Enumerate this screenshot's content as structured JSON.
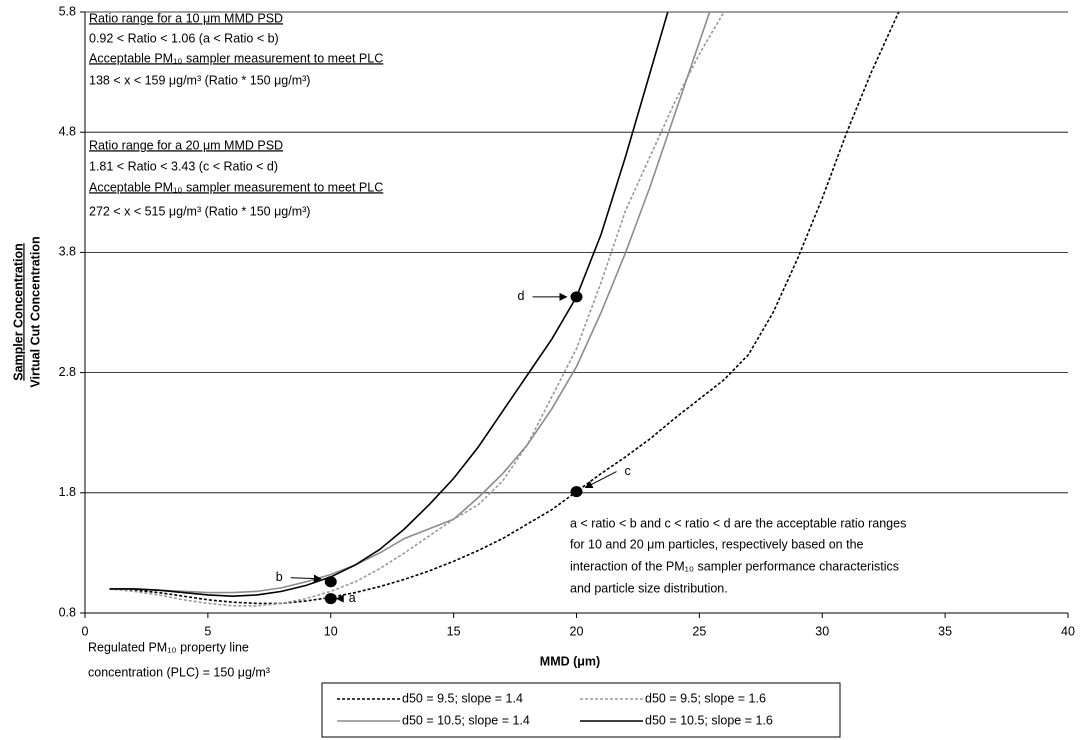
{
  "chart_data": {
    "type": "line",
    "x": [
      1,
      2,
      3,
      4,
      5,
      6,
      7,
      8,
      9,
      10,
      11,
      12,
      13,
      14,
      15,
      16,
      17,
      18,
      19,
      20,
      21,
      22,
      23,
      24,
      25,
      26,
      27,
      28,
      29,
      30,
      31,
      32,
      33,
      34
    ],
    "xlim": [
      0,
      40
    ],
    "xticks": [
      0,
      5,
      10,
      15,
      20,
      25,
      30,
      35,
      40
    ],
    "ylim": [
      0.8,
      5.8
    ],
    "yticks": [
      0.8,
      1.8,
      2.8,
      3.8,
      4.8,
      5.8
    ],
    "grid": true,
    "x_label": "MMD (μm)",
    "y_label": [
      "Sampler Concentration",
      "Virtual Cut Concentration"
    ],
    "series": [
      {
        "name": "d50 = 9.5; slope = 1.4",
        "color": "#000000",
        "dashed": true,
        "values": [
          1.0,
          0.99,
          0.97,
          0.94,
          0.91,
          0.89,
          0.88,
          0.88,
          0.9,
          0.93,
          0.97,
          1.02,
          1.08,
          1.15,
          1.23,
          1.32,
          1.42,
          1.54,
          1.66,
          1.81,
          1.96,
          2.1,
          2.25,
          2.42,
          2.58,
          2.74,
          2.95,
          3.3,
          3.75,
          4.25,
          4.8,
          5.3,
          5.75,
          6.2
        ]
      },
      {
        "name": "d50 = 9.5; slope = 1.6",
        "color": "#999999",
        "dashed": true,
        "values": [
          1.0,
          0.98,
          0.95,
          0.91,
          0.88,
          0.86,
          0.86,
          0.88,
          0.92,
          0.98,
          1.06,
          1.17,
          1.3,
          1.44,
          1.58,
          1.7,
          1.9,
          2.2,
          2.6,
          3.0,
          3.55,
          4.15,
          4.6,
          5.05,
          5.45,
          5.8,
          6.2,
          null,
          null,
          null,
          null,
          null,
          null,
          null
        ]
      },
      {
        "name": "d50 = 10.5; slope = 1.4",
        "color": "#8c8c8c",
        "dashed": false,
        "values": [
          1.0,
          1.0,
          0.99,
          0.98,
          0.97,
          0.97,
          0.98,
          1.01,
          1.06,
          1.12,
          1.2,
          1.3,
          1.42,
          1.5,
          1.58,
          1.76,
          1.96,
          2.2,
          2.5,
          2.85,
          3.3,
          3.8,
          4.35,
          4.95,
          5.55,
          6.15,
          null,
          null,
          null,
          null,
          null,
          null,
          null,
          null
        ]
      },
      {
        "name": "d50 = 10.5; slope = 1.6",
        "color": "#000000",
        "dashed": false,
        "values": [
          1.0,
          1.0,
          0.99,
          0.97,
          0.95,
          0.94,
          0.95,
          0.98,
          1.03,
          1.1,
          1.2,
          1.33,
          1.5,
          1.7,
          1.92,
          2.18,
          2.48,
          2.78,
          3.08,
          3.43,
          3.95,
          4.6,
          5.3,
          6.0,
          null,
          null,
          null,
          null,
          null,
          null,
          null,
          null,
          null,
          null
        ]
      }
    ],
    "points": [
      {
        "label": "a",
        "x": 10,
        "y": 0.92
      },
      {
        "label": "b",
        "x": 10,
        "y": 1.06
      },
      {
        "label": "c",
        "x": 20,
        "y": 1.81
      },
      {
        "label": "d",
        "x": 20,
        "y": 3.43
      }
    ],
    "annotations": {
      "range_10": [
        "Ratio range for a 10 μm MMD PSD",
        "0.92 < Ratio < 1.06 (a < Ratio < b)",
        "Acceptable PM₁₀ sampler measurement to meet PLC",
        "138 < x < 159 μg/m³ (Ratio * 150 μg/m³)"
      ],
      "range_20": [
        "Ratio range for a 20 μm MMD PSD",
        "1.81 < Ratio < 3.43 (c < Ratio < d)",
        "Acceptable PM₁₀ sampler measurement to meet PLC",
        "272 < x < 515 μg/m³ (Ratio * 150 μg/m³)"
      ],
      "note": [
        "a < ratio < b and c < ratio < d are the acceptable ratio ranges",
        "for 10 and 20 μm particles, respectively based on the",
        "interaction of the PM₁₀ sampler performance characteristics",
        "and particle size distribution."
      ],
      "plc": [
        "Regulated PM₁₀ property line",
        "concentration (PLC) = 150 μg/m³"
      ]
    }
  }
}
